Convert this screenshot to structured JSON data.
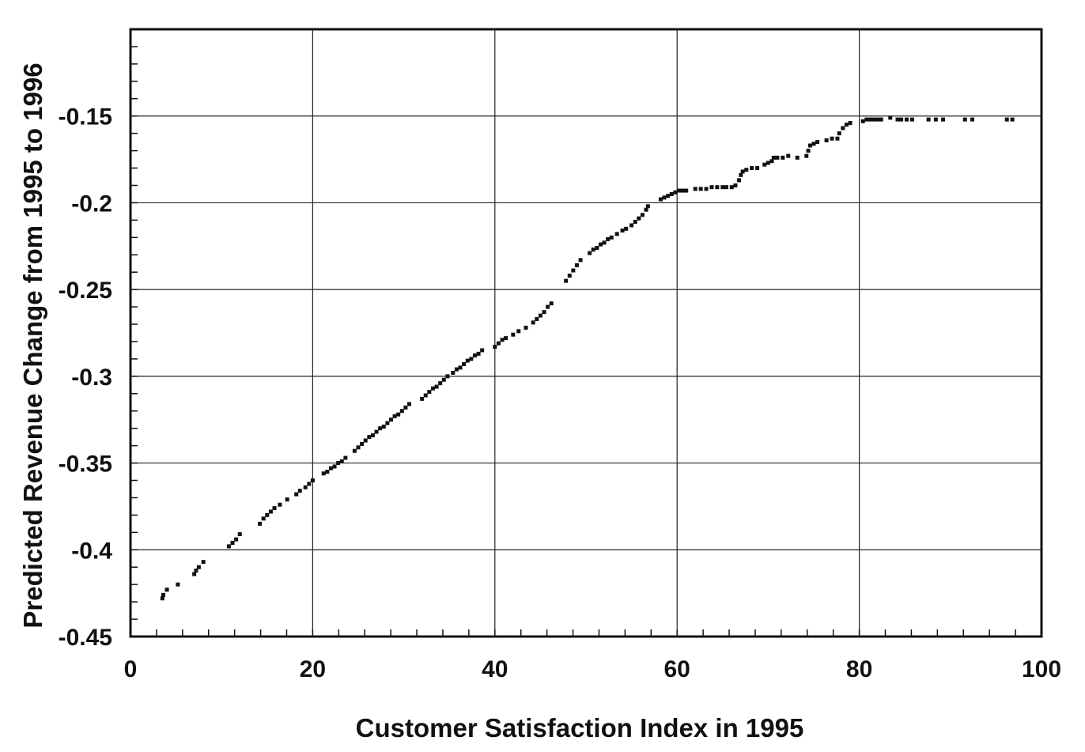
{
  "chart_data": {
    "type": "scatter",
    "title": "",
    "xlabel": "Customer Satisfaction Index in 1995",
    "ylabel": "Predicted Revenue Change from 1995 to 1996",
    "xlim": [
      0,
      100
    ],
    "ylim": [
      -0.45,
      -0.1
    ],
    "x_ticks": [
      0,
      20,
      40,
      60,
      80,
      100
    ],
    "x_tick_labels": [
      "0",
      "20",
      "40",
      "60",
      "80",
      "100"
    ],
    "y_ticks": [
      -0.45,
      -0.4,
      -0.35,
      -0.3,
      -0.25,
      -0.2,
      -0.15
    ],
    "y_tick_labels": [
      "-0.45",
      "-0.4",
      "-0.35",
      "-0.3",
      "-0.25",
      "-0.2",
      "-0.15"
    ],
    "grid": true,
    "legend": "none",
    "points": [
      [
        3.5,
        -0.428
      ],
      [
        3.6,
        -0.426
      ],
      [
        4,
        -0.423
      ],
      [
        5.2,
        -0.42
      ],
      [
        7,
        -0.414
      ],
      [
        7.2,
        -0.412
      ],
      [
        7.5,
        -0.41
      ],
      [
        8,
        -0.407
      ],
      [
        10.8,
        -0.398
      ],
      [
        11.2,
        -0.396
      ],
      [
        11.6,
        -0.394
      ],
      [
        12,
        -0.391
      ],
      [
        14.2,
        -0.385
      ],
      [
        14.6,
        -0.382
      ],
      [
        15,
        -0.38
      ],
      [
        15.4,
        -0.378
      ],
      [
        15.8,
        -0.376
      ],
      [
        16.4,
        -0.374
      ],
      [
        17.2,
        -0.371
      ],
      [
        18.2,
        -0.368
      ],
      [
        18.6,
        -0.366
      ],
      [
        19.2,
        -0.364
      ],
      [
        19.6,
        -0.362
      ],
      [
        20,
        -0.36
      ],
      [
        21.2,
        -0.356
      ],
      [
        21.6,
        -0.355
      ],
      [
        22,
        -0.353
      ],
      [
        22.4,
        -0.352
      ],
      [
        22.8,
        -0.35
      ],
      [
        23.2,
        -0.349
      ],
      [
        23.6,
        -0.347
      ],
      [
        24.6,
        -0.343
      ],
      [
        25,
        -0.341
      ],
      [
        25.4,
        -0.339
      ],
      [
        25.8,
        -0.337
      ],
      [
        26.2,
        -0.335
      ],
      [
        26.6,
        -0.334
      ],
      [
        27,
        -0.332
      ],
      [
        27.4,
        -0.33
      ],
      [
        27.8,
        -0.329
      ],
      [
        28.2,
        -0.327
      ],
      [
        28.6,
        -0.325
      ],
      [
        29,
        -0.323
      ],
      [
        29.4,
        -0.322
      ],
      [
        29.8,
        -0.32
      ],
      [
        30.2,
        -0.318
      ],
      [
        30.6,
        -0.316
      ],
      [
        32,
        -0.313
      ],
      [
        32.4,
        -0.311
      ],
      [
        32.8,
        -0.309
      ],
      [
        33.2,
        -0.307
      ],
      [
        33.6,
        -0.306
      ],
      [
        34,
        -0.304
      ],
      [
        34.4,
        -0.302
      ],
      [
        34.8,
        -0.3
      ],
      [
        35.4,
        -0.298
      ],
      [
        35.8,
        -0.296
      ],
      [
        36.2,
        -0.295
      ],
      [
        36.6,
        -0.293
      ],
      [
        37,
        -0.291
      ],
      [
        37.4,
        -0.29
      ],
      [
        37.8,
        -0.288
      ],
      [
        38.2,
        -0.287
      ],
      [
        38.6,
        -0.285
      ],
      [
        40,
        -0.283
      ],
      [
        40.4,
        -0.281
      ],
      [
        40.8,
        -0.279
      ],
      [
        41.2,
        -0.278
      ],
      [
        42,
        -0.276
      ],
      [
        42.6,
        -0.274
      ],
      [
        43.4,
        -0.272
      ],
      [
        44.2,
        -0.269
      ],
      [
        44.6,
        -0.267
      ],
      [
        45,
        -0.265
      ],
      [
        45.4,
        -0.263
      ],
      [
        45.8,
        -0.26
      ],
      [
        46.2,
        -0.258
      ],
      [
        47.8,
        -0.245
      ],
      [
        48.2,
        -0.242
      ],
      [
        48.6,
        -0.239
      ],
      [
        49,
        -0.236
      ],
      [
        49.4,
        -0.233
      ],
      [
        50.4,
        -0.229
      ],
      [
        50.8,
        -0.227
      ],
      [
        51.2,
        -0.226
      ],
      [
        51.6,
        -0.224
      ],
      [
        52,
        -0.223
      ],
      [
        52.4,
        -0.221
      ],
      [
        52.8,
        -0.22
      ],
      [
        53.4,
        -0.218
      ],
      [
        54,
        -0.216
      ],
      [
        54.4,
        -0.215
      ],
      [
        55,
        -0.213
      ],
      [
        55.4,
        -0.211
      ],
      [
        55.8,
        -0.209
      ],
      [
        56.2,
        -0.207
      ],
      [
        56.6,
        -0.204
      ],
      [
        56.8,
        -0.202
      ],
      [
        58.2,
        -0.198
      ],
      [
        58.6,
        -0.197
      ],
      [
        59,
        -0.196
      ],
      [
        59.4,
        -0.195
      ],
      [
        59.8,
        -0.194
      ],
      [
        60.2,
        -0.193
      ],
      [
        60.6,
        -0.193
      ],
      [
        61,
        -0.193
      ],
      [
        62,
        -0.192
      ],
      [
        62.6,
        -0.192
      ],
      [
        63.2,
        -0.192
      ],
      [
        63.8,
        -0.191
      ],
      [
        64.4,
        -0.191
      ],
      [
        65,
        -0.191
      ],
      [
        65.4,
        -0.191
      ],
      [
        66,
        -0.191
      ],
      [
        66.4,
        -0.19
      ],
      [
        66.8,
        -0.187
      ],
      [
        67,
        -0.184
      ],
      [
        67.2,
        -0.182
      ],
      [
        67.6,
        -0.181
      ],
      [
        68.2,
        -0.18
      ],
      [
        68.8,
        -0.18
      ],
      [
        69.6,
        -0.178
      ],
      [
        70,
        -0.177
      ],
      [
        70.4,
        -0.176
      ],
      [
        70.6,
        -0.174
      ],
      [
        71,
        -0.174
      ],
      [
        71.6,
        -0.174
      ],
      [
        72.2,
        -0.173
      ],
      [
        73.2,
        -0.174
      ],
      [
        74.2,
        -0.173
      ],
      [
        74.4,
        -0.17
      ],
      [
        74.6,
        -0.167
      ],
      [
        75,
        -0.166
      ],
      [
        75.4,
        -0.165
      ],
      [
        76.4,
        -0.164
      ],
      [
        77,
        -0.163
      ],
      [
        77.6,
        -0.163
      ],
      [
        77.8,
        -0.16
      ],
      [
        78.2,
        -0.157
      ],
      [
        78.6,
        -0.155
      ],
      [
        79,
        -0.154
      ],
      [
        80.4,
        -0.153
      ],
      [
        80.8,
        -0.152
      ],
      [
        81.2,
        -0.152
      ],
      [
        81.6,
        -0.152
      ],
      [
        82,
        -0.152
      ],
      [
        82.4,
        -0.152
      ],
      [
        83.4,
        -0.151
      ],
      [
        84.2,
        -0.152
      ],
      [
        84.6,
        -0.152
      ],
      [
        85.2,
        -0.152
      ],
      [
        85.8,
        -0.152
      ],
      [
        87.6,
        -0.152
      ],
      [
        88.4,
        -0.152
      ],
      [
        89.2,
        -0.152
      ],
      [
        91.6,
        -0.152
      ],
      [
        92.4,
        -0.152
      ],
      [
        96.2,
        -0.152
      ],
      [
        96.8,
        -0.152
      ]
    ]
  }
}
